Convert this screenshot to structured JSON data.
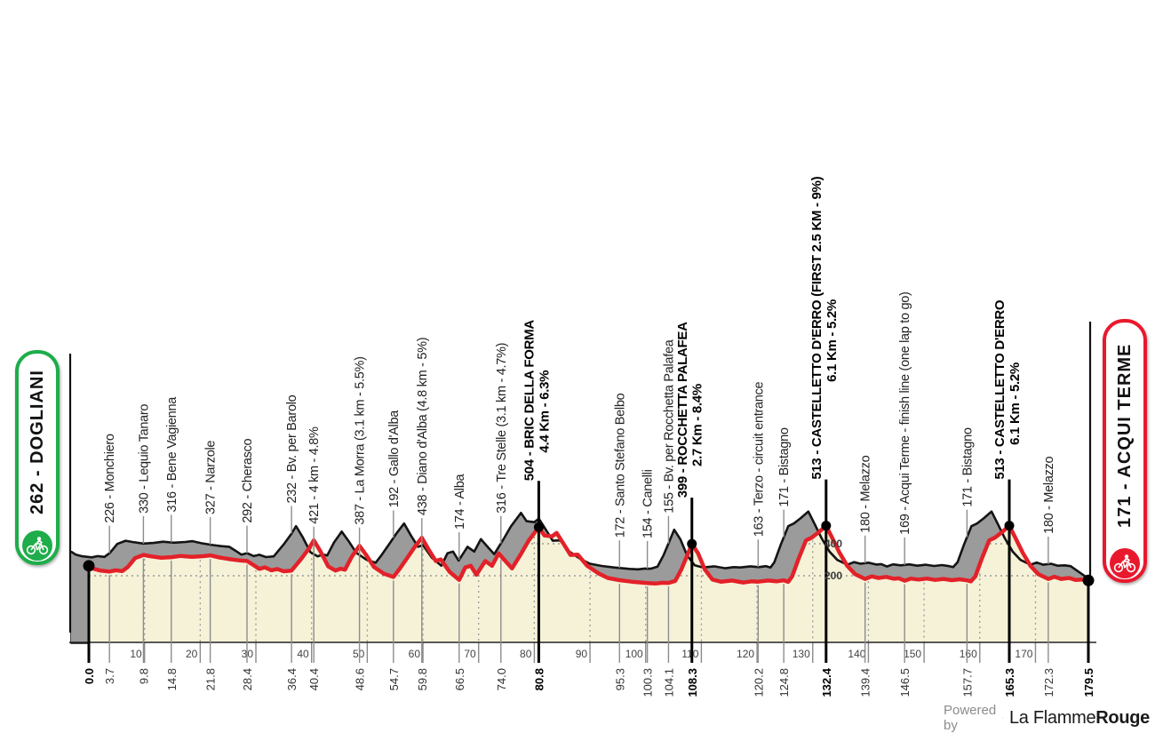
{
  "badges": {
    "start": {
      "label": "262 - DOGLIANI",
      "color": "#1ead4a",
      "icon": "cyclist-icon"
    },
    "finish": {
      "label": "171 - ACQUI TERME",
      "color": "#e9192d",
      "icon": "cyclist-icon"
    }
  },
  "footer": {
    "powered_by": "Powered by",
    "brand_first": "La Flamme",
    "brand_second": "Rouge",
    "logo_color": "#e8232e"
  },
  "chart_data": {
    "type": "area",
    "x_unit": "km",
    "y_unit": "m",
    "x_range": [
      0,
      179.5
    ],
    "start": {
      "km": 0.0,
      "km_label": "0.0",
      "elevation": 262,
      "name": "Dogliani",
      "bold": true
    },
    "finish": {
      "km": 179.5,
      "km_label": "179.5",
      "elevation": 171,
      "name": "Acqui Terme",
      "bold": true
    },
    "waypoints": [
      {
        "km": 3.7,
        "km_label": "3.7",
        "elevation": 226,
        "label": "226 - Monchiero",
        "bold": false
      },
      {
        "km": 9.8,
        "km_label": "9.8",
        "elevation": 330,
        "label": "330 - Lequio Tanaro",
        "bold": false
      },
      {
        "km": 14.8,
        "km_label": "14.8",
        "elevation": 316,
        "label": "316 - Bene Vagienna",
        "bold": false
      },
      {
        "km": 21.8,
        "km_label": "21.8",
        "elevation": 327,
        "label": "327 - Narzole",
        "bold": false
      },
      {
        "km": 28.4,
        "km_label": "28.4",
        "elevation": 292,
        "label": "292 - Cherasco",
        "bold": false
      },
      {
        "km": 36.4,
        "km_label": "36.4",
        "elevation": 232,
        "label": "232 - Bv. per Barolo",
        "bold": false
      },
      {
        "km": 40.4,
        "km_label": "40.4",
        "elevation": 421,
        "label": "421 - 4 km - 4.8%",
        "bold": false
      },
      {
        "km": 48.6,
        "km_label": "48.6",
        "elevation": 387,
        "label": "387 - La Morra (3.1 km - 5.5%)",
        "bold": false
      },
      {
        "km": 54.7,
        "km_label": "54.7",
        "elevation": 192,
        "label": "192 - Gallo d'Alba",
        "bold": false
      },
      {
        "km": 59.8,
        "km_label": "59.8",
        "elevation": 438,
        "label": "438 - Diano d'Alba (4.8 km - 5%)",
        "bold": false
      },
      {
        "km": 66.5,
        "km_label": "66.5",
        "elevation": 174,
        "label": "174 - Alba",
        "bold": false
      },
      {
        "km": 74.0,
        "km_label": "74.0",
        "elevation": 316,
        "label": "316 - Tre Stelle (3.1 km - 4.7%)",
        "bold": false
      },
      {
        "km": 80.8,
        "km_label": "80.8",
        "elevation": 504,
        "label": "504 - BRIC DELLA FORMA",
        "line2": "4.4 Km - 6.3%",
        "bold": true
      },
      {
        "km": 95.3,
        "km_label": "95.3",
        "elevation": 172,
        "label": "172 - Santo Stefano Belbo",
        "bold": false
      },
      {
        "km": 100.3,
        "km_label": "100.3",
        "elevation": 154,
        "label": "154 - Canelli",
        "bold": false
      },
      {
        "km": 104.1,
        "km_label": "104.1",
        "elevation": 155,
        "label": "155 - Bv. per Rocchetta Palafea",
        "bold": false
      },
      {
        "km": 108.3,
        "km_label": "108.3",
        "elevation": 399,
        "label": "399 - ROCCHETTA PALAFEA",
        "line2": "2.7 Km - 8.4%",
        "bold": true
      },
      {
        "km": 120.2,
        "km_label": "120.2",
        "elevation": 163,
        "label": "163 - Terzo - circuit entrance",
        "bold": false
      },
      {
        "km": 124.8,
        "km_label": "124.8",
        "elevation": 171,
        "label": "171 - Bistagno",
        "bold": false
      },
      {
        "km": 132.4,
        "km_label": "132.4",
        "elevation": 513,
        "label": "513 - CASTELLETTO D'ERRO (FIRST 2.5 KM - 9%)",
        "line2": "6.1 Km - 5.2%",
        "bold": true
      },
      {
        "km": 139.4,
        "km_label": "139.4",
        "elevation": 180,
        "label": "180 - Melazzo",
        "bold": false
      },
      {
        "km": 146.5,
        "km_label": "146.5",
        "elevation": 169,
        "label": "169 - Acqui Terme - finish line (one lap to go)",
        "bold": false
      },
      {
        "km": 157.7,
        "km_label": "157.7",
        "elevation": 171,
        "label": "171 - Bistagno",
        "bold": false
      },
      {
        "km": 165.3,
        "km_label": "165.3",
        "elevation": 513,
        "label": "513 - CASTELLETTO D'ERRO",
        "line2": "6.1 Km - 5.2%",
        "bold": true
      },
      {
        "km": 172.3,
        "km_label": "172.3",
        "elevation": 180,
        "label": "180 - Melazzo",
        "bold": false
      }
    ],
    "summit_dots_km": [
      0.0,
      80.8,
      108.3,
      132.4,
      165.3,
      179.5
    ],
    "km_gridlines": [
      10,
      20,
      30,
      40,
      50,
      60,
      70,
      80,
      90,
      100,
      110,
      120,
      130,
      140,
      150,
      160,
      170
    ],
    "elevation_gridlines": [
      {
        "value": 200,
        "label": "200"
      },
      {
        "value": 400,
        "label": "400"
      }
    ],
    "profile": [
      [
        0,
        262
      ],
      [
        0.8,
        244
      ],
      [
        2,
        233
      ],
      [
        3.7,
        226
      ],
      [
        4.8,
        234
      ],
      [
        6,
        229
      ],
      [
        7,
        255
      ],
      [
        8.3,
        310
      ],
      [
        9.8,
        330
      ],
      [
        11,
        322
      ],
      [
        13,
        312
      ],
      [
        14.8,
        316
      ],
      [
        16.5,
        324
      ],
      [
        18.5,
        318
      ],
      [
        20.5,
        322
      ],
      [
        21.8,
        327
      ],
      [
        23.5,
        314
      ],
      [
        25.5,
        303
      ],
      [
        27,
        296
      ],
      [
        28.4,
        292
      ],
      [
        29.6,
        266
      ],
      [
        30.6,
        243
      ],
      [
        31.6,
        252
      ],
      [
        32.8,
        234
      ],
      [
        33.8,
        242
      ],
      [
        35,
        228
      ],
      [
        36.4,
        232
      ],
      [
        38.2,
        308
      ],
      [
        39.5,
        370
      ],
      [
        40.4,
        421
      ],
      [
        41.6,
        352
      ],
      [
        43,
        258
      ],
      [
        44.3,
        232
      ],
      [
        45.2,
        244
      ],
      [
        46,
        238
      ],
      [
        47.2,
        318
      ],
      [
        48.6,
        387
      ],
      [
        49.8,
        330
      ],
      [
        51.2,
        255
      ],
      [
        53,
        212
      ],
      [
        54.7,
        192
      ],
      [
        55.8,
        242
      ],
      [
        57,
        302
      ],
      [
        58.6,
        384
      ],
      [
        59.8,
        438
      ],
      [
        61,
        365
      ],
      [
        62.3,
        292
      ],
      [
        63.2,
        302
      ],
      [
        64.8,
        224
      ],
      [
        66.5,
        174
      ],
      [
        67.6,
        252
      ],
      [
        68.6,
        262
      ],
      [
        69.6,
        206
      ],
      [
        71.2,
        292
      ],
      [
        72.4,
        262
      ],
      [
        73.6,
        340
      ],
      [
        74.6,
        300
      ],
      [
        76,
        246
      ],
      [
        77.5,
        330
      ],
      [
        79,
        420
      ],
      [
        80.8,
        504
      ],
      [
        81.8,
        452
      ],
      [
        83.2,
        446
      ],
      [
        84,
        468
      ],
      [
        85.2,
        402
      ],
      [
        86.5,
        330
      ],
      [
        87.8,
        332
      ],
      [
        89.5,
        262
      ],
      [
        91.5,
        215
      ],
      [
        93.2,
        186
      ],
      [
        95.3,
        172
      ],
      [
        97.5,
        163
      ],
      [
        100.3,
        154
      ],
      [
        101.8,
        151
      ],
      [
        103,
        156
      ],
      [
        104.1,
        155
      ],
      [
        105.3,
        168
      ],
      [
        106.4,
        240
      ],
      [
        107.5,
        330
      ],
      [
        108.3,
        399
      ],
      [
        109.4,
        340
      ],
      [
        110.6,
        240
      ],
      [
        112,
        176
      ],
      [
        113.5,
        163
      ],
      [
        115.5,
        170
      ],
      [
        117.5,
        158
      ],
      [
        119,
        165
      ],
      [
        120.2,
        163
      ],
      [
        122,
        170
      ],
      [
        123.5,
        165
      ],
      [
        124.8,
        171
      ],
      [
        125.6,
        162
      ],
      [
        126.3,
        196
      ],
      [
        127.5,
        310
      ],
      [
        128.8,
        421
      ],
      [
        129.8,
        438
      ],
      [
        131,
        470
      ],
      [
        132.4,
        513
      ],
      [
        133.6,
        430
      ],
      [
        134.8,
        345
      ],
      [
        136.2,
        262
      ],
      [
        137.6,
        210
      ],
      [
        139.4,
        180
      ],
      [
        140.6,
        196
      ],
      [
        141.8,
        186
      ],
      [
        143.2,
        193
      ],
      [
        144.6,
        181
      ],
      [
        145.5,
        184
      ],
      [
        146.5,
        169
      ],
      [
        147.6,
        182
      ],
      [
        149,
        176
      ],
      [
        150.5,
        182
      ],
      [
        152,
        174
      ],
      [
        153.5,
        180
      ],
      [
        155,
        172
      ],
      [
        156.4,
        178
      ],
      [
        157.7,
        171
      ],
      [
        158.4,
        165
      ],
      [
        159.2,
        196
      ],
      [
        160.4,
        310
      ],
      [
        161.7,
        421
      ],
      [
        162.7,
        438
      ],
      [
        163.9,
        470
      ],
      [
        165.3,
        513
      ],
      [
        166.5,
        430
      ],
      [
        167.7,
        345
      ],
      [
        169.1,
        262
      ],
      [
        170.5,
        210
      ],
      [
        172.3,
        180
      ],
      [
        173.4,
        194
      ],
      [
        174.6,
        180
      ],
      [
        176,
        186
      ],
      [
        177.2,
        174
      ],
      [
        178.4,
        176
      ],
      [
        179.5,
        171
      ]
    ],
    "colors": {
      "line": "#e32129",
      "terrain_band": "#9b9b9b",
      "terrain_face": "#f5f2d8",
      "outline": "#141414",
      "wedge": "#4d4d4d",
      "grid": "#999999",
      "axis_text": "#333333"
    }
  }
}
